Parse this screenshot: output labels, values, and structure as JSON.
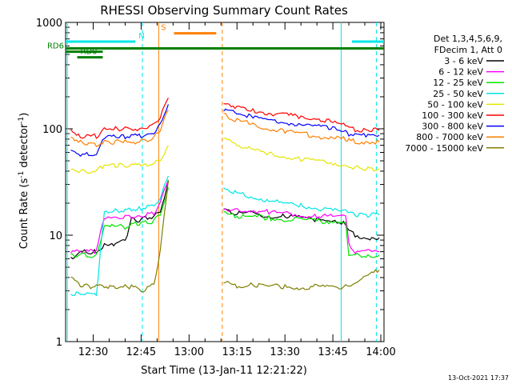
{
  "chart_data": {
    "type": "line",
    "title": "RHESSI Observing Summary Count Rates",
    "xlabel": "Start Time (13-Jan-11 12:21:22)",
    "ylabel_main": "Count Rate (s",
    "ylabel_sup1": "-1",
    "ylabel_mid": " detector",
    "ylabel_sup2": "-1",
    "ylabel_end": ")",
    "y_scale": "log",
    "ylim": [
      1,
      1000
    ],
    "xlim_minutes": [
      741.37,
      841.0
    ],
    "x_ticks": [
      {
        "label": "12:30",
        "min": 750
      },
      {
        "label": "12:45",
        "min": 765
      },
      {
        "label": "13:00",
        "min": 780
      },
      {
        "label": "13:15",
        "min": 795
      },
      {
        "label": "13:30",
        "min": 810
      },
      {
        "label": "13:45",
        "min": 825
      },
      {
        "label": "14:00",
        "min": 840
      }
    ],
    "y_ticks": [
      {
        "label": "1",
        "v": 1
      },
      {
        "label": "10",
        "v": 10
      },
      {
        "label": "100",
        "v": 100
      },
      {
        "label": "1000",
        "v": 1000
      }
    ],
    "legend_header": [
      "Det 1,3,4,5,6,9,",
      "FDecim 1, Att 0"
    ],
    "legend_placement": "right",
    "timestamp": "13-Oct-2021 17:37",
    "flags": [
      {
        "label": "N",
        "color": "#00e5e5",
        "y": 660,
        "segments": [
          [
            741.37,
            763.2
          ],
          [
            831.0,
            841.0
          ]
        ]
      },
      {
        "label": "S",
        "color": "#ff7f00",
        "y": 790,
        "segments": [
          [
            775.3,
            788.5
          ]
        ]
      },
      {
        "label": "",
        "color": "#007f00",
        "y": 570,
        "segments": [
          [
            741.37,
            841.0
          ]
        ]
      },
      {
        "label": "RD0",
        "color": "#007f00",
        "y": 470,
        "segments": [
          [
            745.0,
            753.0
          ]
        ]
      },
      {
        "label": "RD6",
        "color": "#007f00",
        "y": 530,
        "segments": [
          [
            741.37,
            753.0
          ]
        ]
      }
    ],
    "vertical_markers": [
      {
        "min": 741.9,
        "color": "#00e5e5",
        "dashed": false
      },
      {
        "min": 765.4,
        "color": "#00e5e5",
        "dashed": true
      },
      {
        "min": 770.5,
        "color": "#ff7f00",
        "dashed": false
      },
      {
        "min": 790.4,
        "color": "#ff7f00",
        "dashed": true
      },
      {
        "min": 827.6,
        "color": "#00e5e5",
        "dashed": false
      },
      {
        "min": 838.6,
        "color": "#00e5e5",
        "dashed": true
      }
    ],
    "series": [
      {
        "name": "3 - 6 keV",
        "color": "#000000",
        "x": [
          743,
          746,
          748,
          751,
          753.5,
          757,
          760,
          762,
          765,
          767,
          769,
          771,
          773.5,
          790.8,
          795,
          800,
          805,
          810,
          815,
          820,
          825,
          829,
          830,
          832,
          836,
          839.5
        ],
        "y": [
          6,
          7,
          7,
          7,
          8,
          8,
          9,
          14,
          14,
          14.5,
          15,
          17,
          32,
          17,
          16,
          16,
          15,
          15,
          14.5,
          14,
          14,
          13,
          11,
          10,
          9.5,
          9.5
        ]
      },
      {
        "name": "6 - 12 keV",
        "color": "#ff00ff",
        "x": [
          743,
          746,
          748,
          751,
          753.5,
          757,
          760,
          762,
          765,
          767,
          769,
          771,
          773.5,
          790.8,
          795,
          800,
          805,
          810,
          815,
          820,
          825,
          829,
          830,
          832,
          836,
          839.5
        ],
        "y": [
          7,
          7,
          7,
          7,
          15,
          15,
          15,
          15,
          15,
          15.5,
          16,
          20,
          33,
          18,
          17,
          17,
          16.5,
          16,
          15.5,
          15,
          15,
          15,
          8,
          7,
          7,
          7
        ]
      },
      {
        "name": "12 - 25 keV",
        "color": "#00e500",
        "x": [
          743,
          746,
          748,
          751,
          753.5,
          757,
          760,
          762,
          765,
          767,
          769,
          771,
          773.5,
          790.8,
          795,
          800,
          805,
          810,
          815,
          820,
          825,
          829,
          830,
          832,
          836,
          839.5
        ],
        "y": [
          6.5,
          6.5,
          6.5,
          6.5,
          12,
          12,
          12,
          12.5,
          13,
          13,
          13.5,
          16,
          28,
          16,
          15,
          15,
          14.5,
          14,
          14,
          13.5,
          13.5,
          13.5,
          6.5,
          6.5,
          6.5,
          6.5
        ]
      },
      {
        "name": "25 - 50 keV",
        "color": "#00e5e5",
        "x": [
          743,
          746,
          748,
          751,
          753.5,
          757,
          760,
          762,
          765,
          767,
          769,
          771,
          773.5,
          790.8,
          795,
          800,
          805,
          810,
          815,
          820,
          825,
          829,
          830,
          832,
          836,
          839.5
        ],
        "y": [
          2.8,
          2.8,
          2.8,
          2.8,
          17,
          17,
          17,
          17.5,
          18,
          18.5,
          19,
          22,
          36,
          28,
          25,
          23,
          21,
          20,
          19,
          18,
          17,
          16.5,
          16,
          15.5,
          15.5,
          15.5
        ]
      },
      {
        "name": "50 - 100 keV",
        "color": "#e5e500",
        "x": [
          743,
          746,
          748,
          751,
          753.5,
          757,
          760,
          762,
          765,
          767,
          769,
          771,
          773.5,
          790.8,
          795,
          800,
          805,
          810,
          815,
          820,
          825,
          829,
          830,
          832,
          836,
          839.5
        ],
        "y": [
          40,
          40,
          40,
          40,
          45,
          45,
          45,
          45,
          45,
          46,
          47,
          52,
          70,
          80,
          70,
          63,
          58,
          55,
          52,
          50,
          48,
          46,
          44,
          43,
          42,
          42
        ]
      },
      {
        "name": "100 - 300 keV",
        "color": "#ff0000",
        "x": [
          743,
          746,
          748,
          751,
          753.5,
          757,
          760,
          762,
          765,
          767,
          769,
          771,
          773.5,
          790.8,
          795,
          800,
          805,
          810,
          815,
          820,
          825,
          829,
          830,
          832,
          836,
          839.5
        ],
        "y": [
          100,
          85,
          85,
          85,
          100,
          100,
          100,
          100,
          100,
          105,
          110,
          130,
          195,
          180,
          160,
          150,
          140,
          135,
          130,
          125,
          115,
          108,
          100,
          98,
          97,
          97
        ]
      },
      {
        "name": "300 - 800 keV",
        "color": "#0000ff",
        "x": [
          743,
          746,
          748,
          751,
          753.5,
          757,
          760,
          762,
          765,
          767,
          769,
          771,
          773.5,
          790.8,
          795,
          800,
          805,
          810,
          815,
          820,
          825,
          829,
          830,
          832,
          836,
          839.5
        ],
        "y": [
          60,
          57,
          57,
          57,
          85,
          85,
          85,
          85,
          85,
          88,
          92,
          110,
          170,
          150,
          140,
          130,
          120,
          115,
          110,
          105,
          100,
          95,
          90,
          88,
          87,
          87
        ]
      },
      {
        "name": "800 - 7000 keV",
        "color": "#ff7f00",
        "x": [
          743,
          746,
          748,
          751,
          753.5,
          757,
          760,
          762,
          765,
          767,
          769,
          771,
          773.5,
          790.8,
          795,
          800,
          805,
          810,
          815,
          820,
          825,
          829,
          830,
          832,
          836,
          839.5
        ],
        "y": [
          85,
          75,
          72,
          70,
          75,
          75,
          75,
          75,
          75,
          78,
          82,
          100,
          150,
          135,
          120,
          110,
          100,
          95,
          90,
          85,
          82,
          80,
          78,
          76,
          75,
          75
        ]
      },
      {
        "name": "7000 - 15000 keV",
        "color": "#7f7f00",
        "x": [
          743,
          746,
          748,
          751,
          753.5,
          757,
          760,
          762,
          765,
          767,
          769,
          771,
          773.5,
          790.8,
          795,
          800,
          805,
          810,
          815,
          820,
          825,
          829,
          830,
          832,
          836,
          839.5
        ],
        "y": [
          4,
          3.3,
          3.3,
          3.3,
          3.3,
          3.3,
          3.3,
          3.3,
          3.0,
          3.2,
          3.5,
          7,
          33,
          3.7,
          3.3,
          3.4,
          3.3,
          3.3,
          3.2,
          3.3,
          3.2,
          3.3,
          3.4,
          3.5,
          4.2,
          4.7
        ]
      }
    ]
  }
}
